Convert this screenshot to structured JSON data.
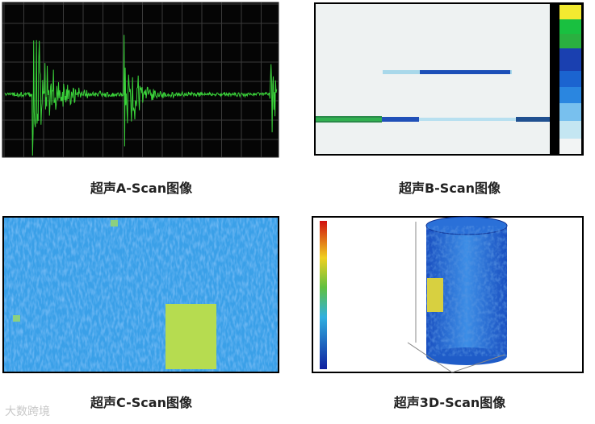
{
  "panels": [
    {
      "caption": "超声A-Scan图像"
    },
    {
      "caption": "超声B-Scan图像"
    },
    {
      "caption": "超声C-Scan图像"
    },
    {
      "caption": "超声3D-Scan图像"
    }
  ],
  "watermark": "大数跨境"
}
